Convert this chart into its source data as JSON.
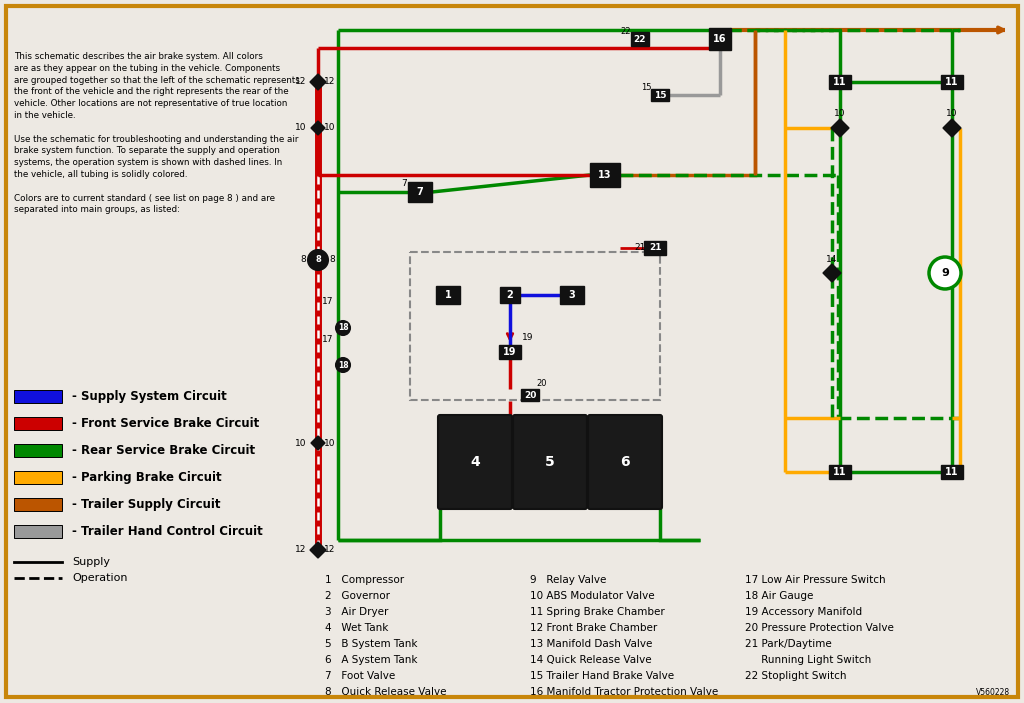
{
  "bg_color": "#ede9e3",
  "border_color": "#c8860a",
  "colors": {
    "blue": "#1010dd",
    "red": "#cc0000",
    "green": "#008800",
    "orange_light": "#ffaa00",
    "orange_dark": "#bb5500",
    "gray": "#999999",
    "black": "#111111",
    "white": "#ffffff",
    "dark_gray": "#444444"
  },
  "legend_items": [
    {
      "color": "#1010dd",
      "label": "Supply System Circuit"
    },
    {
      "color": "#cc0000",
      "label": "Front Service Brake Circuit"
    },
    {
      "color": "#008800",
      "label": "Rear Service Brake Circuit"
    },
    {
      "color": "#ffaa00",
      "label": "Parking Brake Circuit"
    },
    {
      "color": "#bb5500",
      "label": "Trailer Supply Circuit"
    },
    {
      "color": "#999999",
      "label": "Trailer Hand Control Circuit"
    }
  ],
  "desc_text": "This schematic describes the air brake system. All colors\nare as they appear on the tubing in the vehicle. Components\nare grouped together so that the left of the schematic represents\nthe front of the vehicle and the right represents the rear of the\nvehicle. Other locations are not representative of true location\nin the vehicle.\n\nUse the schematic for troubleshooting and understanding the air\nbrake system function. To separate the supply and operation\nsystems, the operation system is shown with dashed lines. In\nthe vehicle, all tubing is solidly colored.\n\nColors are to current standard ( see list on page 8 ) and are\nseparated into main groups, as listed:",
  "comp_col1": [
    "1   Compressor",
    "2   Governor",
    "3   Air Dryer",
    "4   Wet Tank",
    "5   B System Tank",
    "6   A System Tank",
    "7   Foot Valve",
    "8   Quick Release Valve"
  ],
  "comp_col2": [
    "9   Relay Valve",
    "10 ABS Modulator Valve",
    "11 Spring Brake Chamber",
    "12 Front Brake Chamber",
    "13 Manifold Dash Valve",
    "14 Quick Release Valve",
    "15 Trailer Hand Brake Valve",
    "16 Manifold Tractor Protection Valve"
  ],
  "comp_col3": [
    "17 Low Air Pressure Switch",
    "18 Air Gauge",
    "19 Accessory Manifold",
    "20 Pressure Protection Valve",
    "21 Park/Daytime",
    "     Running Light Switch",
    "22 Stoplight Switch"
  ]
}
